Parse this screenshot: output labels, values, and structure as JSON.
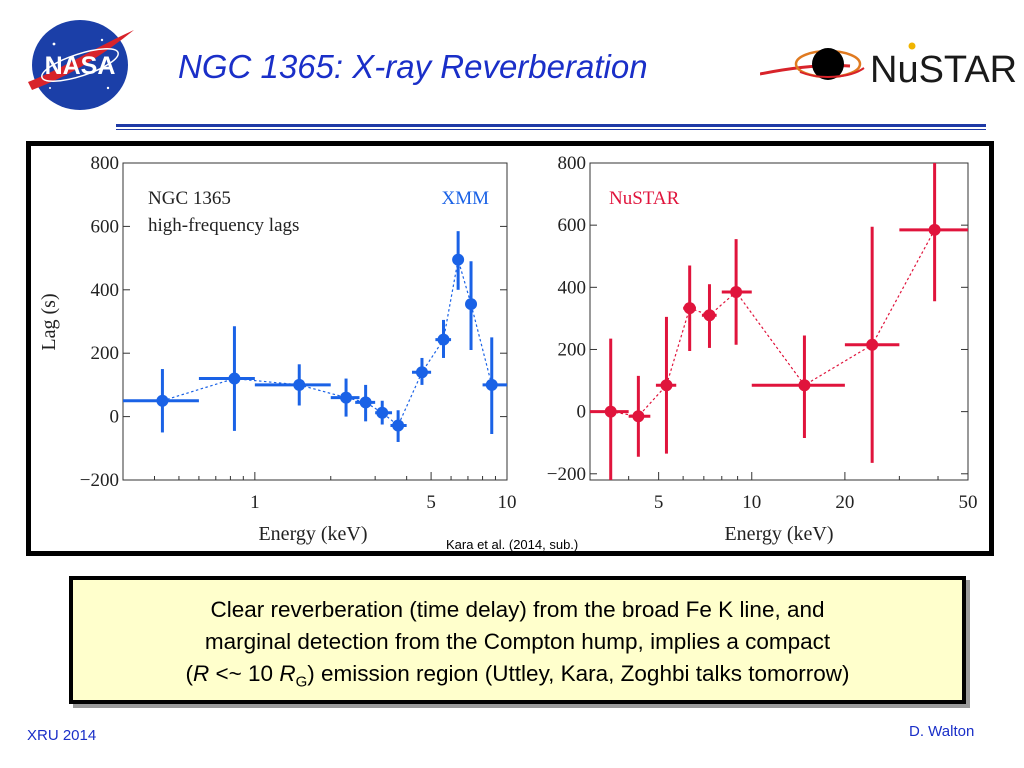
{
  "slide": {
    "title": "NGC 1365: X-ray Reverberation",
    "citation": "Kara et al. (2014, sub.)",
    "callout": {
      "line1": "Clear reverberation (time delay) from the broad Fe K line, and",
      "line2": "marginal detection from the Compton hump, implies a compact",
      "line3_open": "(",
      "line3_R": "R",
      "line3_mid": " <~ 10 ",
      "line3_RG": "R",
      "line3_G": "G",
      "line3_rest": ") emission region (Uttley, Kara, Zoghbi talks tomorrow)"
    },
    "footer_left": "XRU 2014",
    "footer_right": "D. Walton",
    "logos": {
      "nasa_text": "NASA",
      "nustar_text": "NuSTAR"
    },
    "colors": {
      "title": "#1a2fc8",
      "xmm": "#1a62e6",
      "nustar": "#e0143c",
      "callout_bg": "#ffffcc"
    }
  },
  "chart_data": [
    {
      "type": "scatter",
      "x_scale": "log",
      "ylabel": "Lag (s)",
      "xlabel": "Energy (keV)",
      "annotation_lines": [
        "NGC 1365",
        "high-frequency lags"
      ],
      "series_label": "XMM",
      "xlim": [
        0.3,
        10
      ],
      "ylim": [
        -200,
        800
      ],
      "y_ticks": [
        -200,
        0,
        200,
        400,
        600,
        800
      ],
      "y_tick_labels": [
        "−200",
        "0",
        "200",
        "400",
        "600",
        "800"
      ],
      "x_ticks": [
        1,
        5,
        10
      ],
      "x_tick_labels": [
        "1",
        "5",
        "10"
      ],
      "points": [
        {
          "x": 0.43,
          "y": 50,
          "xlo": 0.3,
          "xhi": 0.6,
          "ylo": -50,
          "yhi": 150
        },
        {
          "x": 0.83,
          "y": 120,
          "xlo": 0.6,
          "xhi": 1.0,
          "ylo": -45,
          "yhi": 285
        },
        {
          "x": 1.5,
          "y": 100,
          "xlo": 1.0,
          "xhi": 2.0,
          "ylo": 35,
          "yhi": 165
        },
        {
          "x": 2.3,
          "y": 60,
          "xlo": 2.0,
          "xhi": 2.6,
          "ylo": 0,
          "yhi": 120
        },
        {
          "x": 2.75,
          "y": 45,
          "xlo": 2.5,
          "xhi": 3.0,
          "ylo": -15,
          "yhi": 100
        },
        {
          "x": 3.2,
          "y": 12,
          "xlo": 3.0,
          "xhi": 3.5,
          "ylo": -25,
          "yhi": 50
        },
        {
          "x": 3.7,
          "y": -28,
          "xlo": 3.45,
          "xhi": 4.0,
          "ylo": -80,
          "yhi": 20
        },
        {
          "x": 4.6,
          "y": 140,
          "xlo": 4.2,
          "xhi": 5.0,
          "ylo": 100,
          "yhi": 185
        },
        {
          "x": 5.6,
          "y": 243,
          "xlo": 5.2,
          "xhi": 6.0,
          "ylo": 185,
          "yhi": 305
        },
        {
          "x": 6.4,
          "y": 495,
          "xlo": 6.1,
          "xhi": 6.7,
          "ylo": 400,
          "yhi": 585
        },
        {
          "x": 7.2,
          "y": 355,
          "xlo": 6.9,
          "xhi": 7.5,
          "ylo": 210,
          "yhi": 490
        },
        {
          "x": 8.7,
          "y": 100,
          "xlo": 8.0,
          "xhi": 10.0,
          "ylo": -55,
          "yhi": 250
        }
      ]
    },
    {
      "type": "scatter",
      "x_scale": "log",
      "xlabel": "Energy (keV)",
      "series_label": "NuSTAR",
      "xlim": [
        3,
        50
      ],
      "ylim": [
        -220,
        800
      ],
      "y_ticks": [
        -200,
        0,
        200,
        400,
        600,
        800
      ],
      "y_tick_labels": [
        "−200",
        "0",
        "200",
        "400",
        "600",
        "800"
      ],
      "x_ticks": [
        5,
        10,
        20,
        50
      ],
      "x_tick_labels": [
        "5",
        "10",
        "20",
        "50"
      ],
      "points": [
        {
          "x": 3.5,
          "y": 0,
          "xlo": 3.0,
          "xhi": 4.0,
          "ylo": -220,
          "yhi": 235
        },
        {
          "x": 4.3,
          "y": -15,
          "xlo": 4.0,
          "xhi": 4.7,
          "ylo": -145,
          "yhi": 115
        },
        {
          "x": 5.3,
          "y": 85,
          "xlo": 4.9,
          "xhi": 5.7,
          "ylo": -135,
          "yhi": 305
        },
        {
          "x": 6.3,
          "y": 333,
          "xlo": 6.0,
          "xhi": 6.6,
          "ylo": 195,
          "yhi": 470
        },
        {
          "x": 7.3,
          "y": 310,
          "xlo": 6.9,
          "xhi": 7.7,
          "ylo": 205,
          "yhi": 410
        },
        {
          "x": 8.9,
          "y": 385,
          "xlo": 8.0,
          "xhi": 10.0,
          "ylo": 215,
          "yhi": 555
        },
        {
          "x": 14.8,
          "y": 85,
          "xlo": 10.0,
          "xhi": 20.0,
          "ylo": -85,
          "yhi": 245
        },
        {
          "x": 24.5,
          "y": 215,
          "xlo": 20.0,
          "xhi": 30.0,
          "ylo": -165,
          "yhi": 595
        },
        {
          "x": 39.0,
          "y": 585,
          "xlo": 30.0,
          "xhi": 50.0,
          "ylo": 355,
          "yhi": 810
        }
      ]
    }
  ]
}
